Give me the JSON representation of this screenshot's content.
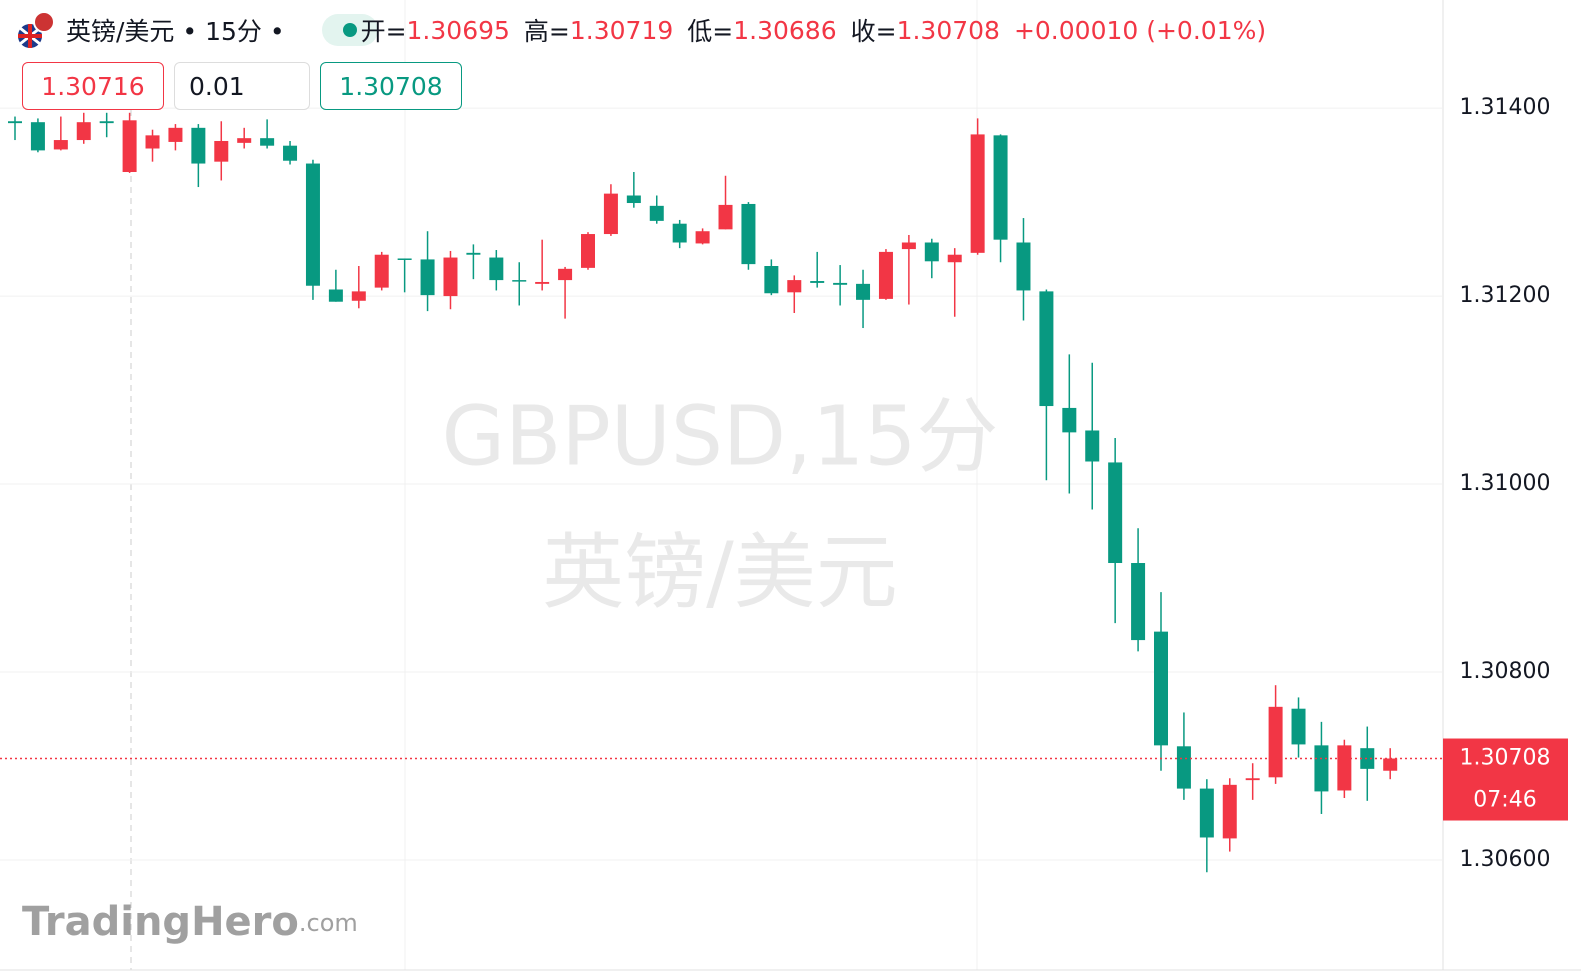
{
  "header": {
    "symbol": "英镑/美元 • 15分 •",
    "open_label": "开=",
    "high_label": "高=",
    "low_label": "低=",
    "close_label": "收=",
    "change": "+0.00010 (+0.01%)"
  },
  "order_box": {
    "sell": "1.30716",
    "quantity": "0.01",
    "buy": "1.30708"
  },
  "watermark": {
    "line1": "GBPUSD,15分",
    "line2": "英镑/美元"
  },
  "logo": {
    "brand": "TradingHero",
    "domain": ".com"
  },
  "chart_data": {
    "type": "candlestick",
    "open": [
      1.31386,
      1.31385,
      1.31356,
      1.31366,
      1.31386,
      1.31332,
      1.31357,
      1.31364,
      1.31379,
      1.31343,
      1.31363,
      1.31368,
      1.3136,
      1.31341,
      1.31207,
      1.31195,
      1.31209,
      1.3124,
      1.31239,
      1.312,
      1.31246,
      1.31241,
      1.31217,
      1.31213,
      1.31217,
      1.3123,
      1.31266,
      1.31307,
      1.31296,
      1.31277,
      1.31256,
      1.31271,
      1.31298,
      1.31232,
      1.31204,
      1.31216,
      1.31214,
      1.31213,
      1.31197,
      1.3125,
      1.31257,
      1.31236,
      1.31246,
      1.31371,
      1.31257,
      1.31205,
      1.31081,
      1.31057,
      1.31023,
      1.30916,
      1.30843,
      1.30721,
      1.30676,
      1.30623,
      1.30685,
      1.30688,
      1.30761,
      1.30722,
      1.30674,
      1.30719,
      1.30695
    ],
    "high": [
      1.31391,
      1.31389,
      1.31391,
      1.31395,
      1.31395,
      1.31395,
      1.31377,
      1.31383,
      1.31383,
      1.31386,
      1.31379,
      1.31388,
      1.31365,
      1.31345,
      1.31228,
      1.31232,
      1.31247,
      1.3124,
      1.31269,
      1.31248,
      1.31255,
      1.31249,
      1.31236,
      1.3126,
      1.31231,
      1.31268,
      1.31319,
      1.31332,
      1.31307,
      1.31281,
      1.31272,
      1.31328,
      1.313,
      1.31239,
      1.31222,
      1.31247,
      1.31233,
      1.31228,
      1.3125,
      1.31265,
      1.31261,
      1.31251,
      1.31389,
      1.31372,
      1.31283,
      1.31207,
      1.31138,
      1.31129,
      1.31049,
      1.30953,
      1.30885,
      1.30757,
      1.30686,
      1.30687,
      1.30703,
      1.30786,
      1.30773,
      1.30747,
      1.30728,
      1.30742,
      1.30719
    ],
    "low": [
      1.31366,
      1.31353,
      1.31355,
      1.31362,
      1.31369,
      1.31331,
      1.31343,
      1.31355,
      1.31316,
      1.31323,
      1.31357,
      1.31357,
      1.3134,
      1.31196,
      1.31194,
      1.31187,
      1.31206,
      1.31204,
      1.31184,
      1.31186,
      1.31218,
      1.31206,
      1.3119,
      1.31206,
      1.31176,
      1.31228,
      1.31264,
      1.31294,
      1.31277,
      1.31251,
      1.31255,
      1.31271,
      1.31228,
      1.31201,
      1.31182,
      1.31209,
      1.3119,
      1.31166,
      1.31196,
      1.31191,
      1.31219,
      1.31178,
      1.31244,
      1.31236,
      1.31174,
      1.31004,
      1.3099,
      1.30973,
      1.30852,
      1.30822,
      1.30695,
      1.30664,
      1.30587,
      1.30609,
      1.30664,
      1.30681,
      1.30709,
      1.30649,
      1.30666,
      1.30663,
      1.30686
    ],
    "close": [
      1.31384,
      1.31355,
      1.31366,
      1.31385,
      1.31384,
      1.31387,
      1.31371,
      1.31379,
      1.31341,
      1.31365,
      1.31368,
      1.3136,
      1.31344,
      1.31211,
      1.31194,
      1.31205,
      1.31244,
      1.31239,
      1.31201,
      1.31241,
      1.31244,
      1.31217,
      1.31216,
      1.31215,
      1.31229,
      1.31266,
      1.31309,
      1.31299,
      1.3128,
      1.31257,
      1.31269,
      1.31297,
      1.31234,
      1.31203,
      1.31217,
      1.31214,
      1.31212,
      1.31196,
      1.31247,
      1.31257,
      1.31237,
      1.31244,
      1.31372,
      1.3126,
      1.31206,
      1.31083,
      1.31055,
      1.31024,
      1.30916,
      1.30834,
      1.30722,
      1.30676,
      1.30624,
      1.3068,
      1.30687,
      1.30763,
      1.30723,
      1.30673,
      1.30722,
      1.30697,
      1.30708
    ],
    "up_color": "#f23645",
    "down_color": "#089981",
    "ylim": [
      1.30483,
      1.31515
    ],
    "yticks": [
      {
        "value": 1.314,
        "label": "1.31400"
      },
      {
        "value": 1.312,
        "label": "1.31200"
      },
      {
        "value": 1.31,
        "label": "1.31000"
      },
      {
        "value": 1.308,
        "label": "1.30800"
      },
      {
        "value": 1.306,
        "label": "1.30600"
      }
    ],
    "grid": true,
    "last_price_line": true,
    "countdown": "07:46"
  }
}
